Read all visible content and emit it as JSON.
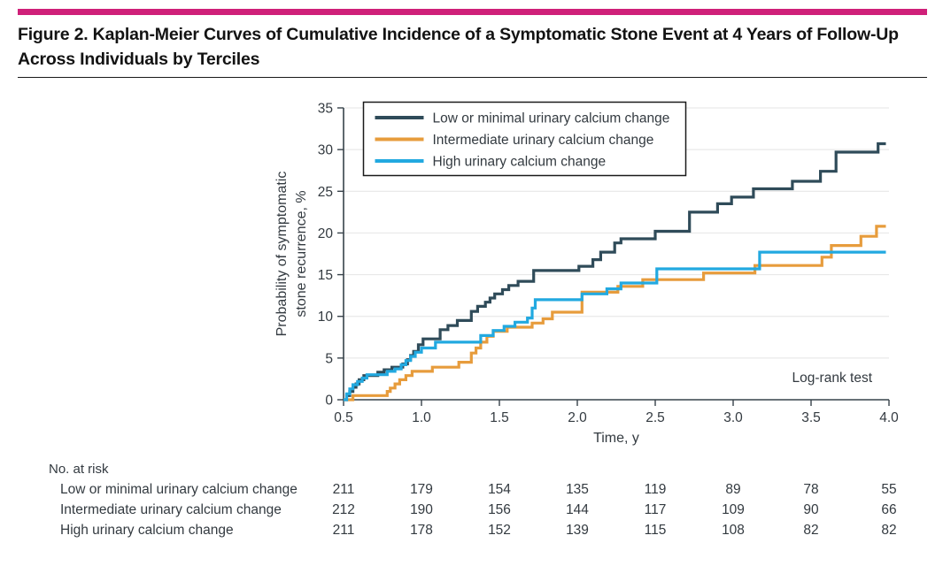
{
  "header": {
    "title": "Figure 2. Kaplan-Meier Curves of Cumulative Incidence of a Symptomatic Stone Event at 4 Years of Follow-Up Across Individuals by Terciles",
    "accent_color": "#CF2079"
  },
  "chart_data": {
    "type": "line",
    "subtype": "kaplan-meier-step",
    "xlabel": "Time, y",
    "ylabel_lines": [
      "Probability of symptomatic",
      "stone recurrence, %"
    ],
    "xlim": [
      0.5,
      4.0
    ],
    "ylim": [
      0,
      35
    ],
    "xtick_labels": [
      "0.5",
      "1.0",
      "1.5",
      "2.0",
      "2.5",
      "3.0",
      "3.5",
      "4.0"
    ],
    "xticks": [
      0.5,
      1.0,
      1.5,
      2.0,
      2.5,
      3.0,
      3.5,
      4.0
    ],
    "yticks": [
      0,
      5,
      10,
      15,
      20,
      25,
      30,
      35
    ],
    "grid": "horizontal",
    "legend_position": "top-left-inside",
    "annotation": "Log-rank test",
    "curve_end_x": 3.98,
    "series": [
      {
        "name": "Low or minimal urinary calcium change",
        "color": "#2F4B59",
        "points": [
          [
            0.5,
            0
          ],
          [
            0.52,
            0.5
          ],
          [
            0.54,
            1.0
          ],
          [
            0.56,
            1.5
          ],
          [
            0.58,
            1.9
          ],
          [
            0.6,
            2.4
          ],
          [
            0.63,
            2.9
          ],
          [
            0.72,
            3.3
          ],
          [
            0.76,
            3.6
          ],
          [
            0.81,
            3.9
          ],
          [
            0.88,
            4.3
          ],
          [
            0.91,
            4.8
          ],
          [
            0.93,
            5.3
          ],
          [
            0.95,
            5.8
          ],
          [
            0.98,
            6.6
          ],
          [
            1.01,
            7.3
          ],
          [
            1.12,
            8.4
          ],
          [
            1.17,
            8.9
          ],
          [
            1.23,
            9.5
          ],
          [
            1.32,
            10.6
          ],
          [
            1.36,
            11.2
          ],
          [
            1.41,
            11.7
          ],
          [
            1.44,
            12.2
          ],
          [
            1.47,
            12.7
          ],
          [
            1.52,
            13.2
          ],
          [
            1.56,
            13.7
          ],
          [
            1.62,
            14.2
          ],
          [
            1.72,
            15.5
          ],
          [
            2.01,
            16.0
          ],
          [
            2.1,
            16.8
          ],
          [
            2.15,
            17.7
          ],
          [
            2.24,
            18.8
          ],
          [
            2.28,
            19.3
          ],
          [
            2.5,
            20.2
          ],
          [
            2.72,
            22.5
          ],
          [
            2.9,
            23.5
          ],
          [
            2.99,
            24.3
          ],
          [
            3.13,
            25.3
          ],
          [
            3.38,
            26.2
          ],
          [
            3.56,
            27.4
          ],
          [
            3.66,
            29.7
          ],
          [
            3.93,
            30.7
          ]
        ]
      },
      {
        "name": "Intermediate urinary calcium change",
        "color": "#E79C3C",
        "points": [
          [
            0.5,
            0
          ],
          [
            0.56,
            0.5
          ],
          [
            0.78,
            1.0
          ],
          [
            0.8,
            1.4
          ],
          [
            0.83,
            1.9
          ],
          [
            0.86,
            2.4
          ],
          [
            0.9,
            2.9
          ],
          [
            0.94,
            3.4
          ],
          [
            1.07,
            3.9
          ],
          [
            1.24,
            4.5
          ],
          [
            1.32,
            5.6
          ],
          [
            1.35,
            6.2
          ],
          [
            1.38,
            6.9
          ],
          [
            1.42,
            7.6
          ],
          [
            1.46,
            8.2
          ],
          [
            1.55,
            8.7
          ],
          [
            1.71,
            9.2
          ],
          [
            1.78,
            9.7
          ],
          [
            1.84,
            10.5
          ],
          [
            2.03,
            12.9
          ],
          [
            2.26,
            13.6
          ],
          [
            2.42,
            14.4
          ],
          [
            2.81,
            15.2
          ],
          [
            3.14,
            16.1
          ],
          [
            3.57,
            17.1
          ],
          [
            3.63,
            18.5
          ],
          [
            3.82,
            19.6
          ],
          [
            3.92,
            20.8
          ]
        ]
      },
      {
        "name": "High urinary calcium change",
        "color": "#22A9E0",
        "points": [
          [
            0.5,
            0
          ],
          [
            0.52,
            0.7
          ],
          [
            0.54,
            1.3
          ],
          [
            0.56,
            1.8
          ],
          [
            0.59,
            2.2
          ],
          [
            0.62,
            2.6
          ],
          [
            0.65,
            3.0
          ],
          [
            0.78,
            3.4
          ],
          [
            0.83,
            3.7
          ],
          [
            0.87,
            4.2
          ],
          [
            0.9,
            4.7
          ],
          [
            0.93,
            5.2
          ],
          [
            0.96,
            5.7
          ],
          [
            1.0,
            6.2
          ],
          [
            1.09,
            6.9
          ],
          [
            1.38,
            7.7
          ],
          [
            1.46,
            8.3
          ],
          [
            1.53,
            8.8
          ],
          [
            1.6,
            9.3
          ],
          [
            1.68,
            9.8
          ],
          [
            1.71,
            11.0
          ],
          [
            1.73,
            12.0
          ],
          [
            2.03,
            12.7
          ],
          [
            2.19,
            13.3
          ],
          [
            2.28,
            14.0
          ],
          [
            2.51,
            15.7
          ],
          [
            3.17,
            17.7
          ]
        ]
      }
    ]
  },
  "risk_table": {
    "header": "No. at risk",
    "time_points": [
      0.5,
      1.0,
      1.5,
      2.0,
      2.5,
      3.0,
      3.5,
      4.0
    ],
    "rows": [
      {
        "label": "Low or minimal urinary calcium change",
        "values": [
          "211",
          "179",
          "154",
          "135",
          "119",
          "89",
          "78",
          "55"
        ]
      },
      {
        "label": "Intermediate urinary calcium change",
        "values": [
          "212",
          "190",
          "156",
          "144",
          "117",
          "109",
          "90",
          "66"
        ]
      },
      {
        "label": "High urinary calcium change",
        "values": [
          "211",
          "178",
          "152",
          "139",
          "115",
          "108",
          "82",
          "82"
        ]
      }
    ]
  },
  "colors": {
    "accent": "#CF2079",
    "axis": "#37424A",
    "grid": "#E4E4E4",
    "text": "#333A40"
  }
}
